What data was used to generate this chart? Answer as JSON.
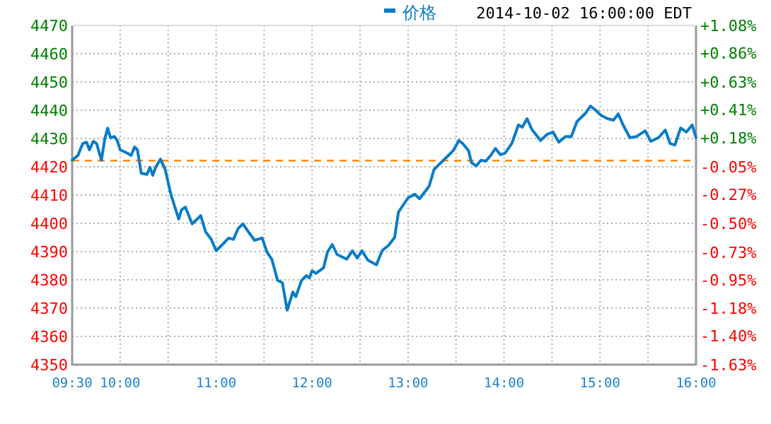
{
  "chart_data": {
    "type": "line",
    "x": [
      9.5,
      9.56,
      9.61,
      9.65,
      9.68,
      9.72,
      9.755,
      9.805,
      9.84,
      9.87,
      9.9,
      9.94,
      9.97,
      10.0,
      10.075,
      10.115,
      10.15,
      10.18,
      10.22,
      10.28,
      10.31,
      10.34,
      10.37,
      10.42,
      10.47,
      10.52,
      10.54,
      10.61,
      10.64,
      10.68,
      10.75,
      10.84,
      10.89,
      10.95,
      11.0,
      11.06,
      11.13,
      11.18,
      11.23,
      11.28,
      11.33,
      11.4,
      11.48,
      11.53,
      11.58,
      11.64,
      11.69,
      11.74,
      11.8,
      11.83,
      11.89,
      11.94,
      11.97,
      12.0,
      12.04,
      12.12,
      12.16,
      12.21,
      12.26,
      12.36,
      12.42,
      12.47,
      12.52,
      12.58,
      12.67,
      12.73,
      12.8,
      12.86,
      12.9,
      13.0,
      13.07,
      13.12,
      13.22,
      13.27,
      13.32,
      13.42,
      13.47,
      13.53,
      13.57,
      13.63,
      13.66,
      13.71,
      13.76,
      13.81,
      13.86,
      13.91,
      13.96,
      14.01,
      14.08,
      14.15,
      14.19,
      14.24,
      14.29,
      14.38,
      14.45,
      14.51,
      14.57,
      14.64,
      14.7,
      14.76,
      14.79,
      14.85,
      14.9,
      14.96,
      15.01,
      15.08,
      15.14,
      15.19,
      15.24,
      15.31,
      15.38,
      15.47,
      15.53,
      15.61,
      15.68,
      15.73,
      15.78,
      15.84,
      15.9,
      15.96,
      16.0
    ],
    "series": [
      {
        "name": "价格",
        "color": "#0a7cc8",
        "values": [
          4422.3,
          4424,
          4428.2,
          4428.7,
          4426,
          4429,
          4428.2,
          4422.3,
          4429.8,
          4433.7,
          4430.2,
          4430.7,
          4429.3,
          4426,
          4424.8,
          4424,
          4427,
          4426,
          4417.7,
          4417.3,
          4419.8,
          4417,
          4419.8,
          4422.7,
          4419,
          4411.5,
          4409,
          4401.5,
          4404.8,
          4405.7,
          4399.8,
          4402.7,
          4397,
          4394.3,
          4390.3,
          4392.3,
          4394.8,
          4394.3,
          4398.2,
          4399.8,
          4397.3,
          4394,
          4394.8,
          4389.8,
          4387.3,
          4379.8,
          4379,
          4369.3,
          4375.7,
          4374,
          4379.8,
          4381.5,
          4380.7,
          4383.2,
          4382.3,
          4384.3,
          4389.8,
          4392.5,
          4389,
          4387.3,
          4390.3,
          4387.7,
          4390.3,
          4387,
          4385.3,
          4390.3,
          4392.3,
          4395,
          4404,
          4409,
          4410.3,
          4408.7,
          4413.2,
          4419,
          4420.7,
          4424,
          4425.7,
          4429.3,
          4428.2,
          4425.7,
          4421.5,
          4420.3,
          4422.3,
          4422,
          4424,
          4426.5,
          4424.3,
          4424.8,
          4428.2,
          4434.8,
          4434,
          4437,
          4433.2,
          4429.3,
          4431.5,
          4432.3,
          4428.7,
          4430.7,
          4430.7,
          4436,
          4437,
          4439,
          4441.5,
          4439.8,
          4438.2,
          4437,
          4436.5,
          4438.7,
          4434.8,
          4430.3,
          4430.7,
          4432.7,
          4429,
          4430.3,
          4433,
          4428.2,
          4427.7,
          4433.7,
          4432.3,
          4434.8,
          4430.3
        ]
      }
    ],
    "xlim": [
      9.5,
      16
    ],
    "xticks": [
      {
        "value": 9.5,
        "label": "09:30"
      },
      {
        "value": 10,
        "label": "10:00"
      },
      {
        "value": 10.5,
        "label": null
      },
      {
        "value": 11,
        "label": "11:00"
      },
      {
        "value": 11.5,
        "label": null
      },
      {
        "value": 12,
        "label": "12:00"
      },
      {
        "value": 12.5,
        "label": null
      },
      {
        "value": 13,
        "label": "13:00"
      },
      {
        "value": 13.5,
        "label": null
      },
      {
        "value": 14,
        "label": "14:00"
      },
      {
        "value": 14.5,
        "label": null
      },
      {
        "value": 15,
        "label": "15:00"
      },
      {
        "value": 15.5,
        "label": null
      },
      {
        "value": 16,
        "label": "16:00"
      }
    ],
    "ylim": [
      4350,
      4470
    ],
    "yticks": [
      4350,
      4360,
      4370,
      4380,
      4390,
      4400,
      4410,
      4420,
      4430,
      4440,
      4450,
      4460,
      4470
    ],
    "y2lim": [
      -1.63,
      1.08
    ],
    "y2ticks": [
      {
        "value": 1.08,
        "label": "+1.08%"
      },
      {
        "value": 0.86,
        "label": "+0.86%"
      },
      {
        "value": 0.63,
        "label": "+0.63%"
      },
      {
        "value": 0.41,
        "label": "+0.41%"
      },
      {
        "value": 0.18,
        "label": "+0.18%"
      },
      {
        "value": -0.05,
        "label": "-0.05%"
      },
      {
        "value": -0.27,
        "label": "-0.27%"
      },
      {
        "value": -0.5,
        "label": "-0.50%"
      },
      {
        "value": -0.73,
        "label": "-0.73%"
      },
      {
        "value": -0.95,
        "label": "-0.95%"
      },
      {
        "value": -1.18,
        "label": "-1.18%"
      },
      {
        "value": -1.4,
        "label": "-1.40%"
      },
      {
        "value": -1.63,
        "label": "-1.63%"
      }
    ],
    "ref_lines": [
      {
        "axis": "y",
        "value": 4422.2,
        "color": "#ff8c00",
        "line_style": "dashed"
      }
    ],
    "annotations": [
      "2014-10-02 16:00:00 EDT"
    ],
    "grid": true,
    "legend": "top",
    "marker": "none",
    "line_style": "solid"
  }
}
